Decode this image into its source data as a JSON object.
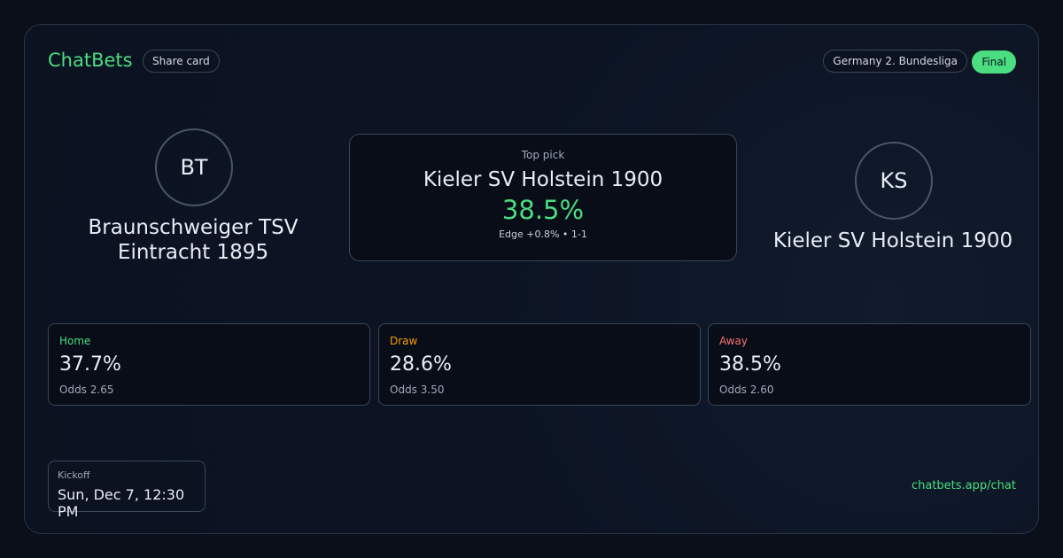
{
  "header": {
    "brand": "ChatBets",
    "share": "Share card",
    "league": "Germany 2. Bundesliga",
    "status": "Final"
  },
  "home": {
    "initials": "BT",
    "name": "Braunschweiger TSV Eintracht 1895"
  },
  "pick": {
    "label": "Top pick",
    "team": "Kieler SV Holstein 1900",
    "probability": "38.5%",
    "detail": "Edge +0.8% • 1-1"
  },
  "away": {
    "initials": "KS",
    "name": "Kieler SV Holstein 1900"
  },
  "outcomes": [
    {
      "label": "Home",
      "probability": "37.7%",
      "odds": "Odds 2.65"
    },
    {
      "label": "Draw",
      "probability": "28.6%",
      "odds": "Odds 3.50"
    },
    {
      "label": "Away",
      "probability": "38.5%",
      "odds": "Odds 2.60"
    }
  ],
  "kickoff": {
    "label": "Kickoff",
    "time": "Sun, Dec 7, 12:30 PM"
  },
  "footer": {
    "link": "chatbets.app/chat"
  }
}
